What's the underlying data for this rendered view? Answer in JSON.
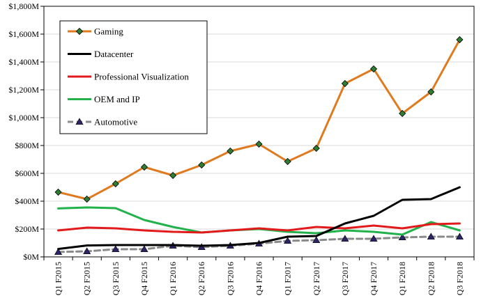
{
  "chart_data": {
    "type": "line",
    "title": "",
    "xlabel": "",
    "ylabel": "",
    "categories": [
      "Q1 F2015",
      "Q2 F2015",
      "Q3 F2015",
      "Q4 F2015",
      "Q1 F2016",
      "Q2 F2016",
      "Q3 F2016",
      "Q4 F2016",
      "Q1 F2017",
      "Q2 F2017",
      "Q3 F2017",
      "Q4 F2017",
      "Q1 F2018",
      "Q2 F2018",
      "Q3 F2018"
    ],
    "ylim": [
      0,
      1800
    ],
    "y_ticks": [
      0,
      200,
      400,
      600,
      800,
      1000,
      1200,
      1400,
      1600,
      1800
    ],
    "y_tick_labels": [
      "$0M",
      "$200M",
      "$400M",
      "$600M",
      "$800M",
      "$1,000M",
      "$1,200M",
      "$1,400M",
      "$1,600M",
      "$1,800M"
    ],
    "grid": "horizontal",
    "legend_position": "top-left",
    "series": [
      {
        "name": "Gaming",
        "color": "#E07A1F",
        "marker": "diamond",
        "marker_color": "#2E7D32",
        "dashed": false,
        "values": [
          465,
          415,
          525,
          645,
          585,
          660,
          760,
          810,
          685,
          780,
          1245,
          1350,
          1030,
          1185,
          1560
        ]
      },
      {
        "name": "Datacenter",
        "color": "#000000",
        "marker": "none",
        "dashed": false,
        "values": [
          57,
          82,
          85,
          85,
          85,
          80,
          85,
          100,
          145,
          150,
          240,
          295,
          410,
          415,
          500
        ]
      },
      {
        "name": "Professional Visualization",
        "color": "#E31A1C",
        "marker": "none",
        "dashed": false,
        "values": [
          190,
          210,
          205,
          190,
          180,
          175,
          190,
          205,
          190,
          215,
          205,
          225,
          205,
          235,
          240
        ]
      },
      {
        "name": "OEM and IP",
        "color": "#21B24B",
        "marker": "none",
        "dashed": false,
        "values": [
          348,
          355,
          350,
          265,
          215,
          175,
          190,
          200,
          180,
          170,
          190,
          180,
          160,
          250,
          190
        ]
      },
      {
        "name": "Automotive",
        "color": "#8A8A8A",
        "marker": "triangle",
        "marker_color": "#2B2466",
        "dashed": true,
        "values": [
          35,
          40,
          55,
          55,
          80,
          70,
          80,
          95,
          115,
          120,
          130,
          130,
          140,
          145,
          145
        ]
      }
    ]
  }
}
